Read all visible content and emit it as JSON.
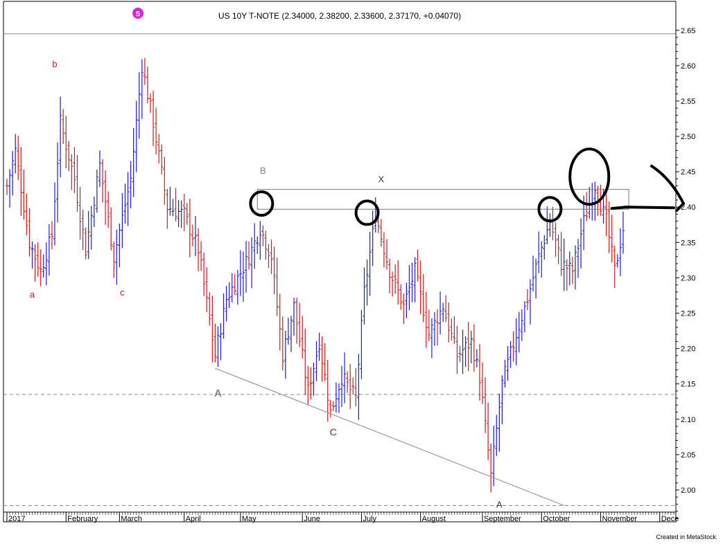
{
  "chart_data": {
    "type": "bar",
    "style": "ohlc",
    "title": "US 10Y T-NOTE (2.34000, 2.38200, 2.33600, 2.37170, +0.04070)",
    "badge": "5",
    "ylim": [
      1.955,
      2.685
    ],
    "y_ticks": [
      2.0,
      2.05,
      2.1,
      2.15,
      2.2,
      2.25,
      2.3,
      2.35,
      2.4,
      2.45,
      2.5,
      2.55,
      2.6,
      2.65
    ],
    "x_month_labels": [
      "2017",
      "February",
      "March",
      "April",
      "May",
      "June",
      "July",
      "August",
      "September",
      "October",
      "November",
      "Dece"
    ],
    "x_month_index": [
      0,
      21,
      40,
      63,
      83,
      105,
      126,
      147,
      169,
      190,
      211,
      232
    ],
    "series_colors": {
      "up": "#1b1bd0",
      "down": "#cc1a1a"
    },
    "anchors": [
      [
        0,
        2.43
      ],
      [
        3,
        2.48
      ],
      [
        8,
        2.35
      ],
      [
        12,
        2.31
      ],
      [
        16,
        2.36
      ],
      [
        19,
        2.52
      ],
      [
        24,
        2.44
      ],
      [
        28,
        2.34
      ],
      [
        33,
        2.46
      ],
      [
        38,
        2.33
      ],
      [
        44,
        2.44
      ],
      [
        48,
        2.6
      ],
      [
        52,
        2.52
      ],
      [
        57,
        2.4
      ],
      [
        63,
        2.39
      ],
      [
        68,
        2.34
      ],
      [
        74,
        2.19
      ],
      [
        78,
        2.27
      ],
      [
        82,
        2.3
      ],
      [
        86,
        2.33
      ],
      [
        90,
        2.37
      ],
      [
        94,
        2.33
      ],
      [
        98,
        2.19
      ],
      [
        102,
        2.26
      ],
      [
        107,
        2.14
      ],
      [
        111,
        2.21
      ],
      [
        115,
        2.11
      ],
      [
        119,
        2.16
      ],
      [
        124,
        2.13
      ],
      [
        127,
        2.28
      ],
      [
        131,
        2.39
      ],
      [
        136,
        2.31
      ],
      [
        141,
        2.26
      ],
      [
        145,
        2.31
      ],
      [
        150,
        2.22
      ],
      [
        155,
        2.26
      ],
      [
        160,
        2.19
      ],
      [
        165,
        2.21
      ],
      [
        168,
        2.16
      ],
      [
        172,
        2.02
      ],
      [
        176,
        2.15
      ],
      [
        181,
        2.22
      ],
      [
        185,
        2.27
      ],
      [
        189,
        2.33
      ],
      [
        193,
        2.38
      ],
      [
        197,
        2.32
      ],
      [
        201,
        2.31
      ],
      [
        205,
        2.38
      ],
      [
        209,
        2.43
      ],
      [
        213,
        2.38
      ],
      [
        216,
        2.31
      ],
      [
        219,
        2.37
      ]
    ],
    "horizontal_lines": [
      {
        "y": 2.645,
        "style": "solid"
      },
      {
        "y": 2.135,
        "style": "dashed"
      },
      {
        "y": 1.978,
        "style": "dashed"
      }
    ],
    "box": {
      "x_from": 89,
      "x_to": 221,
      "y_low": 2.397,
      "y_high": 2.425
    },
    "trendline": {
      "x1": 74,
      "y1": 2.172,
      "x2": 198,
      "y2": 1.978
    },
    "wave_labels": [
      {
        "text": "b",
        "x": 17,
        "y": 2.598,
        "color": "#cc1a1a"
      },
      {
        "text": "a",
        "x": 9,
        "y": 2.272,
        "color": "#cc1a1a"
      },
      {
        "text": "c",
        "x": 41,
        "y": 2.275,
        "color": "#cc1a1a"
      },
      {
        "text": "B",
        "x": 91,
        "y": 2.447,
        "color": "#808080"
      },
      {
        "text": "X",
        "x": 133,
        "y": 2.435,
        "color": "#333333"
      },
      {
        "text": "A",
        "x": 75,
        "y": 2.132,
        "color": "#808080"
      },
      {
        "text": "C",
        "x": 116,
        "y": 2.077,
        "color": "#808080"
      },
      {
        "text": "A",
        "x": 175,
        "y": 1.975,
        "color": "#333333"
      }
    ],
    "circles": [
      {
        "x": 90.5,
        "y": 2.405
      },
      {
        "x": 128,
        "y": 2.392
      },
      {
        "x": 193,
        "y": 2.397
      },
      {
        "x": 207,
        "y": 2.443
      }
    ],
    "credit": "Created in MetaStock"
  }
}
